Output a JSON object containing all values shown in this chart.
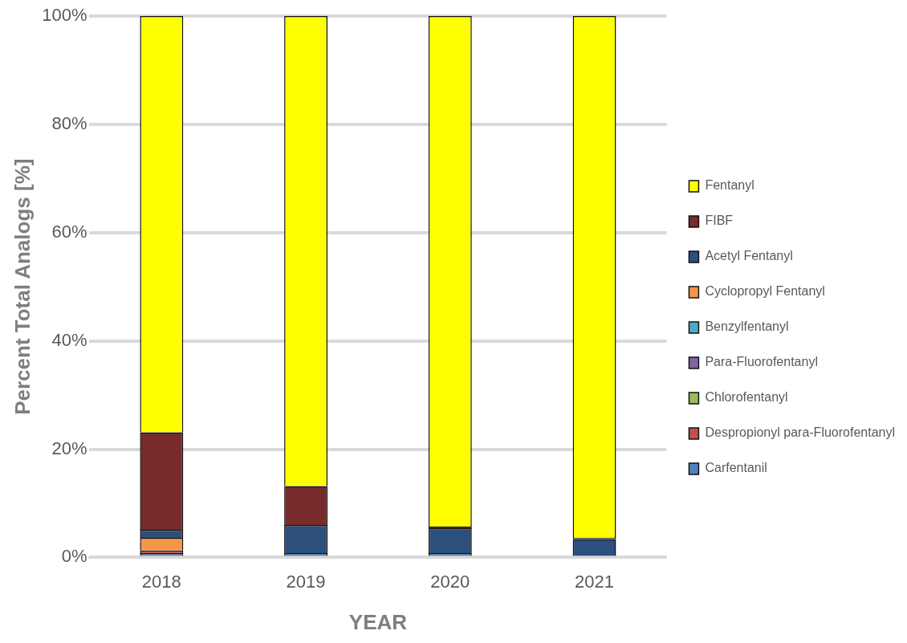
{
  "chart_data": {
    "type": "bar",
    "stacked": true,
    "xlabel": "YEAR",
    "ylabel": "Percent Total Analogs [%]",
    "categories": [
      "2018",
      "2019",
      "2020",
      "2021"
    ],
    "series": [
      {
        "name": "Carfentanil",
        "color": "#4f81bd",
        "values": [
          0.8,
          0.8,
          0.8,
          0
        ]
      },
      {
        "name": "Despropionyl para-Fluorofentanyl",
        "color": "#c0504d",
        "values": [
          0.5,
          0,
          0,
          0
        ]
      },
      {
        "name": "Chlorofentanyl",
        "color": "#9bbb59",
        "values": [
          0,
          0,
          0,
          0
        ]
      },
      {
        "name": "Para-Fluorofentanyl",
        "color": "#8064a2",
        "values": [
          0,
          0,
          0,
          0
        ]
      },
      {
        "name": "Benzylfentanyl",
        "color": "#4bacc6",
        "values": [
          0,
          0,
          0,
          0
        ]
      },
      {
        "name": "Cyclopropyl Fentanyl",
        "color": "#f79646",
        "values": [
          2.3,
          0,
          0,
          0
        ]
      },
      {
        "name": "Acetyl Fentanyl",
        "color": "#2c4f7c",
        "values": [
          1.5,
          5.2,
          4.6,
          3.4
        ]
      },
      {
        "name": "FIBF",
        "color": "#772b2b",
        "values": [
          18,
          7.2,
          0.3,
          0.2
        ]
      },
      {
        "name": "Fentanyl",
        "color": "#ffff00",
        "values": [
          76.9,
          86.8,
          94.3,
          96.4
        ]
      }
    ],
    "ylim": [
      0,
      100
    ],
    "yticks": [
      {
        "value": 0,
        "label": "0%"
      },
      {
        "value": 20,
        "label": "20%"
      },
      {
        "value": 40,
        "label": "40%"
      },
      {
        "value": 60,
        "label": "60%"
      },
      {
        "value": 80,
        "label": "80%"
      },
      {
        "value": 100,
        "label": "100%"
      }
    ],
    "grid": "y",
    "legend": "right"
  }
}
